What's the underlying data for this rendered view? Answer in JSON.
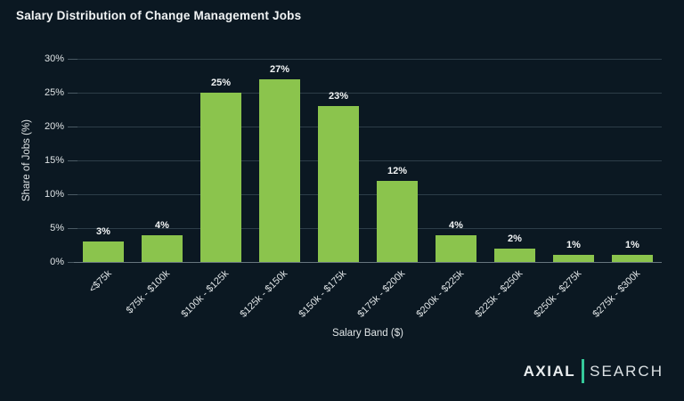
{
  "page": {
    "background_color": "#0b1822"
  },
  "chart_data": {
    "type": "bar",
    "title": "Salary Distribution of Change Management Jobs",
    "categories": [
      "<$75k",
      "$75k - $100k",
      "$100k - $125k",
      "$125k - $150k",
      "$150k - $175k",
      "$175k - $200k",
      "$200k - $225k",
      "$225k - $250k",
      "$250k - $275k",
      "$275k - $300k"
    ],
    "values": [
      3,
      4,
      25,
      27,
      23,
      12,
      4,
      2,
      1,
      1
    ],
    "value_labels": [
      "3%",
      "4%",
      "25%",
      "27%",
      "23%",
      "12%",
      "4%",
      "2%",
      "1%",
      "1%"
    ],
    "xlabel": "Salary Band ($)",
    "ylabel": "Share of Jobs (%)",
    "ylim": [
      0,
      30
    ],
    "yticks": [
      0,
      5,
      10,
      15,
      20,
      25,
      30
    ],
    "ytick_labels": [
      "0%",
      "5%",
      "10%",
      "15%",
      "20%",
      "25%",
      "30%"
    ],
    "grid": "horizontal",
    "legend_position": "none",
    "bar_color": "#8bc44d",
    "grid_color": "#2d3d48",
    "axis_line_color": "#66757e",
    "text_color": "#eef1f2"
  },
  "branding": {
    "logo_primary": "AXIAL",
    "logo_secondary": "SEARCH",
    "divider_color": "#35c99a"
  }
}
